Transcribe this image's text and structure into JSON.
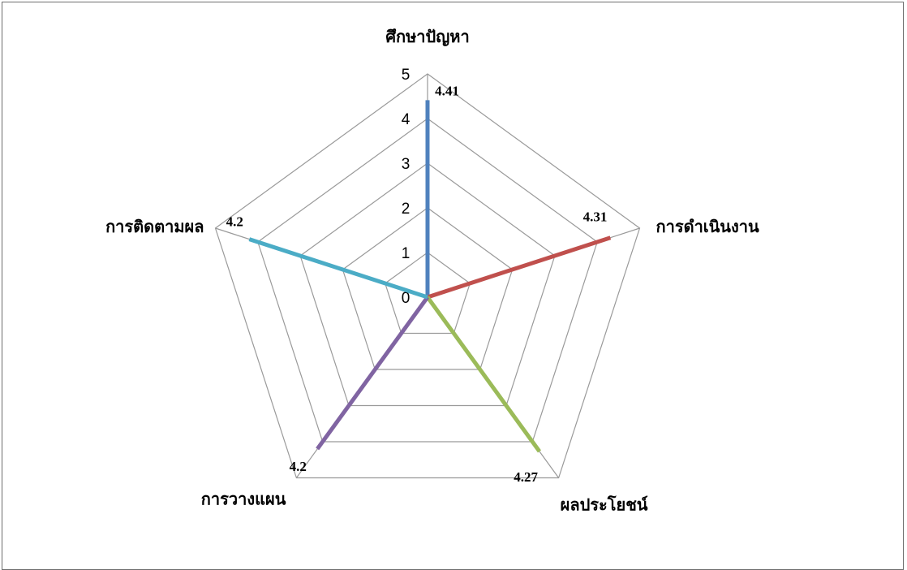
{
  "chart_data": {
    "type": "radar",
    "title": "",
    "axes": [
      "ศึกษาปัญหา",
      "การดำเนินงาน",
      "ผลประโยชน์",
      "การวางแผน",
      "การติดตามผล"
    ],
    "values": [
      4.41,
      4.31,
      4.27,
      4.2,
      4.2
    ],
    "data_labels": [
      "4.41",
      "4.31",
      "4.27",
      "4.2",
      "4.2"
    ],
    "rlim": [
      0,
      5
    ],
    "ticks": [
      0,
      1,
      2,
      3,
      4,
      5
    ],
    "tick_labels": [
      "0",
      "1",
      "2",
      "3",
      "4",
      "5"
    ],
    "grid": true,
    "legend": "none",
    "colors": [
      "#4f81bd",
      "#c0504d",
      "#9bbb59",
      "#8064a2",
      "#4bacc6"
    ],
    "grid_color": "#9a9a9a"
  }
}
